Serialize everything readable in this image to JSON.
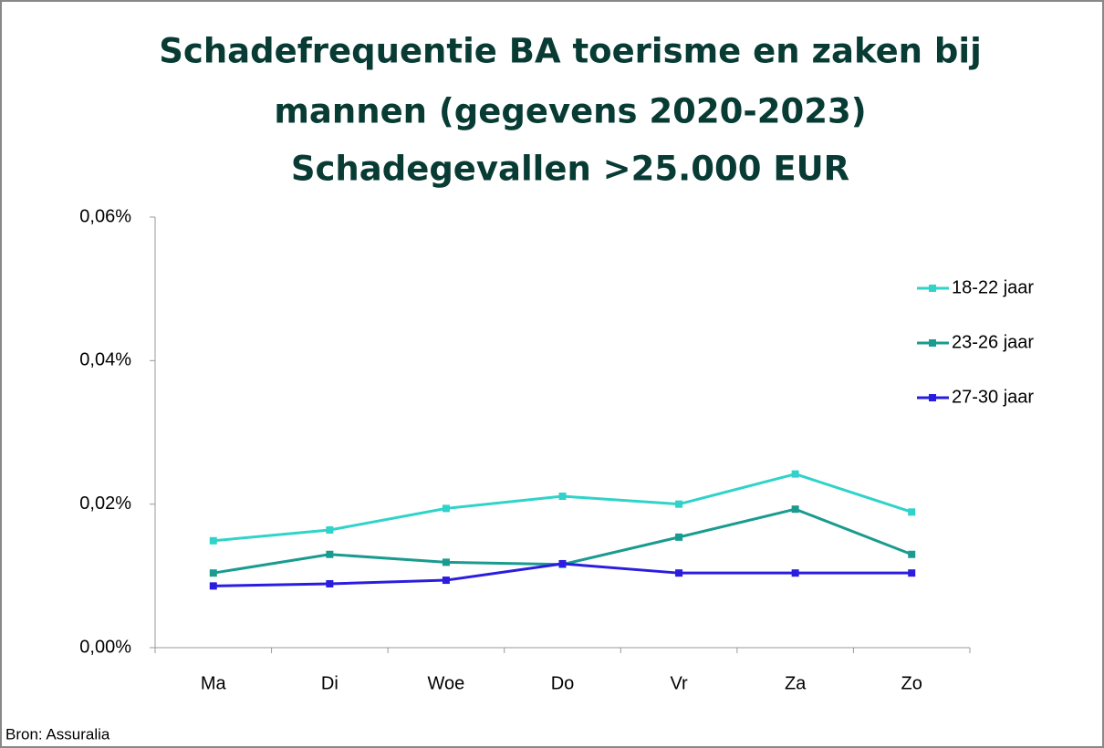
{
  "chart_data": {
    "type": "line",
    "title": [
      "Schadefrequentie BA toerisme en zaken bij",
      "mannen (gegevens 2020-2023)"
    ],
    "subtitle": "Schadegevallen >25.000 EUR",
    "source": "Bron: Assuralia",
    "categories": [
      "Ma",
      "Di",
      "Woe",
      "Do",
      "Vr",
      "Za",
      "Zo"
    ],
    "series": [
      {
        "name": "18-22 jaar",
        "color": "#2fd3c9",
        "values": [
          0.0149,
          0.0164,
          0.0194,
          0.0211,
          0.02,
          0.0242,
          0.0189
        ]
      },
      {
        "name": "23-26 jaar",
        "color": "#1a9b90",
        "values": [
          0.0104,
          0.013,
          0.0119,
          0.0116,
          0.0154,
          0.0193,
          0.013
        ]
      },
      {
        "name": "27-30 jaar",
        "color": "#2b1de0",
        "values": [
          0.0086,
          0.0089,
          0.0094,
          0.0117,
          0.0104,
          0.0104,
          0.0104
        ]
      }
    ],
    "ylim": [
      0,
      0.06
    ],
    "yticks": [
      {
        "value": 0,
        "label": "0,00%"
      },
      {
        "value": 0.02,
        "label": "0,02%"
      },
      {
        "value": 0.04,
        "label": "0,04%"
      },
      {
        "value": 0.06,
        "label": "0,06%"
      }
    ],
    "legend": "right"
  }
}
